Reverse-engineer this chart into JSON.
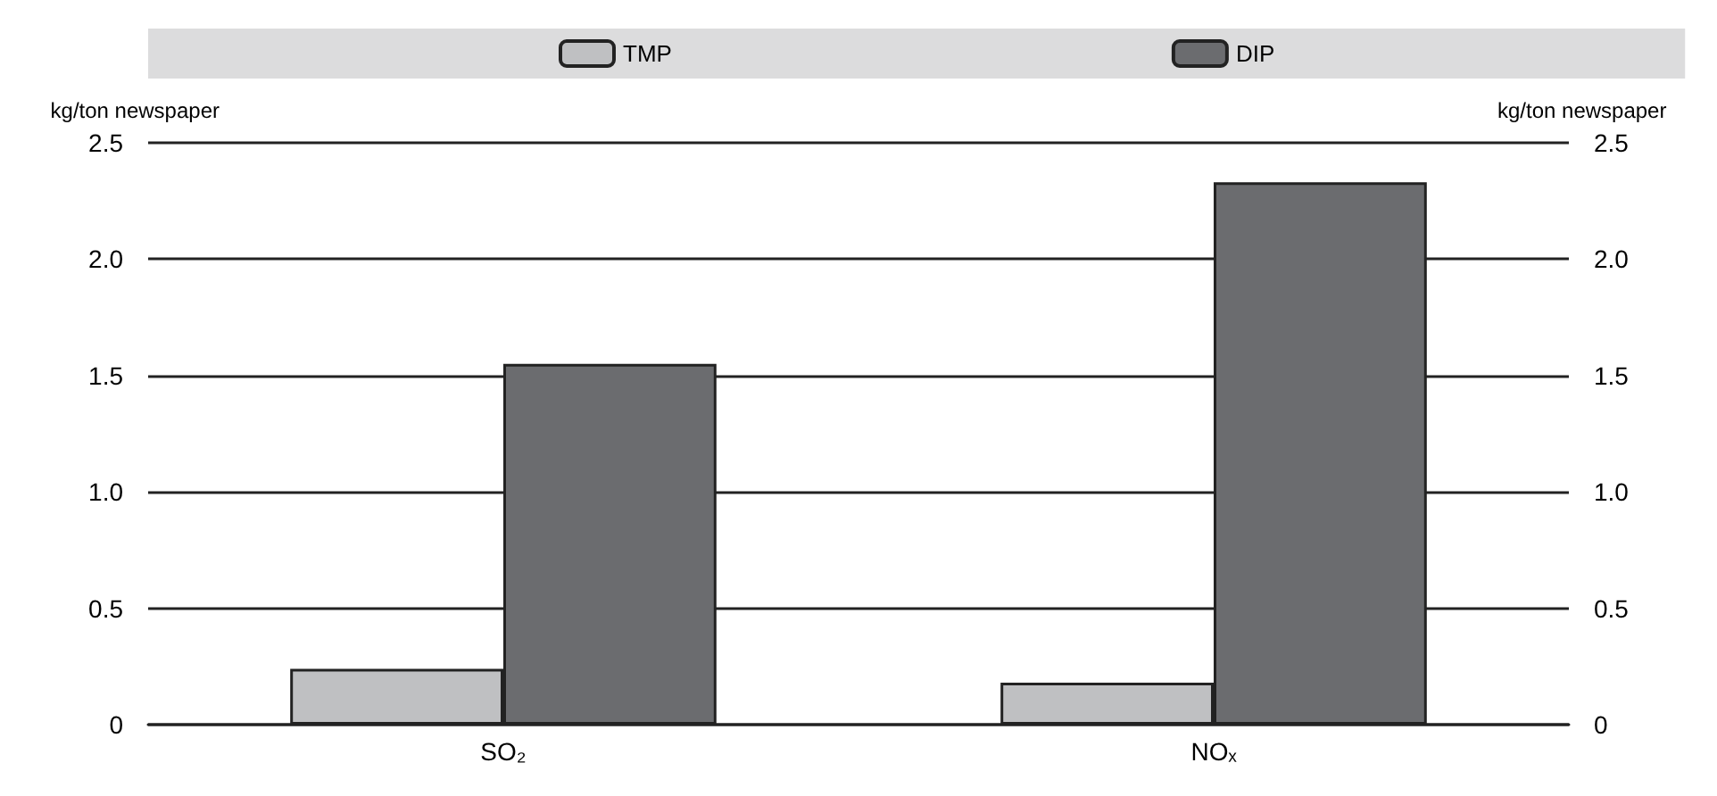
{
  "chart_data": {
    "type": "bar",
    "categories": [
      "SO₂",
      "NOₓ"
    ],
    "series": [
      {
        "name": "TMP",
        "color": "#bfc0c2",
        "values": [
          0.24,
          0.18
        ]
      },
      {
        "name": "DIP",
        "color": "#6b6c6f",
        "values": [
          1.55,
          2.33
        ]
      }
    ],
    "ylabel": "kg/ton newspaper",
    "y2label": "kg/ton newspaper",
    "ylim": [
      0,
      2.5
    ],
    "yticks": [
      0,
      {
        "value": 0.5,
        "label": "0.5"
      },
      {
        "value": 1,
        "label": "1.0"
      },
      {
        "value": 1.5,
        "label": "1.5"
      },
      {
        "value": 2,
        "label": "2.0"
      },
      {
        "value": 2.5,
        "label": "2.5"
      }
    ],
    "y2lim": [
      0,
      2.5
    ],
    "y2ticks": [
      0,
      {
        "value": 0.5,
        "label": "0.5"
      },
      {
        "value": 1,
        "label": "1.0"
      },
      {
        "value": 1.5,
        "label": "1.5"
      },
      {
        "value": 2,
        "label": "2.0"
      },
      {
        "value": 2.5,
        "label": "2.5"
      }
    ],
    "grid": "y",
    "legend": "top"
  }
}
